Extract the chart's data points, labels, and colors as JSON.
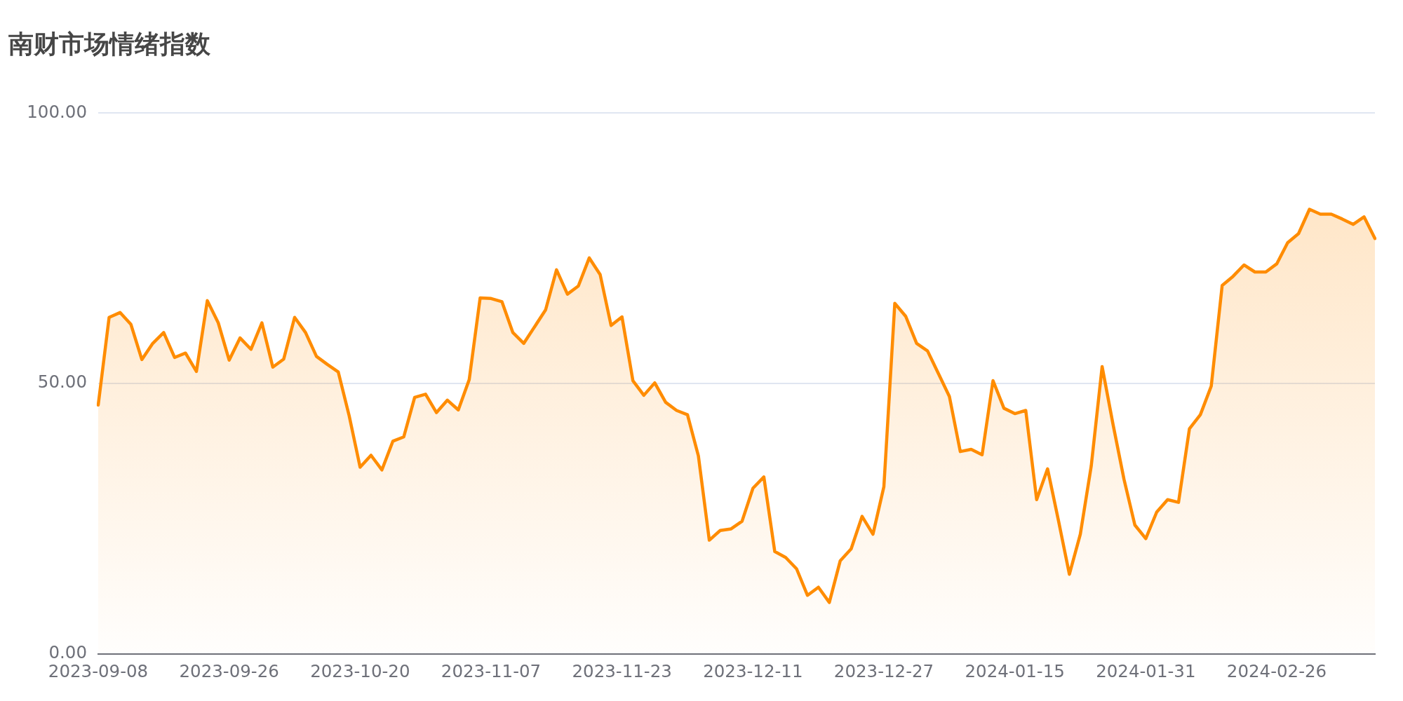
{
  "chart_data": {
    "type": "area",
    "title": "南财市场情绪指数",
    "categories": [
      "2023-09-08",
      null,
      null,
      null,
      null,
      null,
      null,
      null,
      null,
      null,
      null,
      null,
      "2023-09-26",
      null,
      null,
      null,
      null,
      null,
      null,
      null,
      null,
      null,
      null,
      null,
      "2023-10-20",
      null,
      null,
      null,
      null,
      null,
      null,
      null,
      null,
      null,
      null,
      null,
      "2023-11-07",
      null,
      null,
      null,
      null,
      null,
      null,
      null,
      null,
      null,
      null,
      null,
      "2023-11-23",
      null,
      null,
      null,
      null,
      null,
      null,
      null,
      null,
      null,
      null,
      null,
      "2023-12-11",
      null,
      null,
      null,
      null,
      null,
      null,
      null,
      null,
      null,
      null,
      null,
      "2023-12-27",
      null,
      null,
      null,
      null,
      null,
      null,
      null,
      null,
      null,
      null,
      null,
      "2024-01-15",
      null,
      null,
      null,
      null,
      null,
      null,
      null,
      null,
      null,
      null,
      null,
      "2024-01-31",
      null,
      null,
      null,
      null,
      null,
      null,
      null,
      null,
      null,
      null,
      null,
      "2024-02-26",
      null,
      null,
      null,
      null,
      null,
      null,
      null,
      null,
      null
    ],
    "values": [
      46.0,
      62.2,
      63.1,
      60.9,
      54.4,
      57.4,
      59.4,
      54.8,
      55.6,
      52.2,
      65.3,
      61.2,
      54.3,
      58.4,
      56.3,
      61.2,
      53.0,
      54.5,
      62.2,
      59.4,
      55.0,
      53.5,
      52.1,
      44.0,
      34.5,
      36.7,
      34.0,
      39.3,
      40.1,
      47.4,
      48.0,
      44.6,
      46.9,
      45.1,
      50.7,
      65.8,
      65.7,
      65.1,
      59.4,
      57.4,
      60.5,
      63.6,
      71.0,
      66.5,
      68.0,
      73.2,
      70.1,
      60.7,
      62.3,
      50.5,
      47.8,
      50.1,
      46.5,
      45.0,
      44.2,
      36.6,
      21.0,
      22.8,
      23.1,
      24.5,
      30.6,
      32.7,
      18.9,
      17.8,
      15.7,
      10.8,
      12.3,
      9.5,
      17.2,
      19.4,
      25.4,
      22.1,
      30.9,
      64.8,
      62.4,
      57.4,
      56.0,
      51.8,
      47.6,
      37.4,
      37.8,
      36.8,
      50.5,
      45.4,
      44.4,
      45.0,
      28.5,
      34.2,
      24.6,
      14.7,
      22.1,
      34.7,
      53.1,
      42.4,
      32.3,
      23.8,
      21.3,
      26.2,
      28.5,
      28.0,
      41.6,
      44.2,
      49.5,
      68.1,
      69.8,
      71.9,
      70.6,
      70.6,
      72.1,
      76.0,
      77.7,
      82.2,
      81.3,
      81.3,
      80.4,
      79.4,
      80.8,
      76.8
    ],
    "color": "#ff8c00",
    "ylim": [
      0,
      100
    ],
    "yticks": [
      {
        "value": 0,
        "label": "0.00"
      },
      {
        "value": 50,
        "label": "50.00"
      },
      {
        "value": 100,
        "label": "100.00"
      }
    ],
    "grid": "y",
    "marker": "none"
  }
}
